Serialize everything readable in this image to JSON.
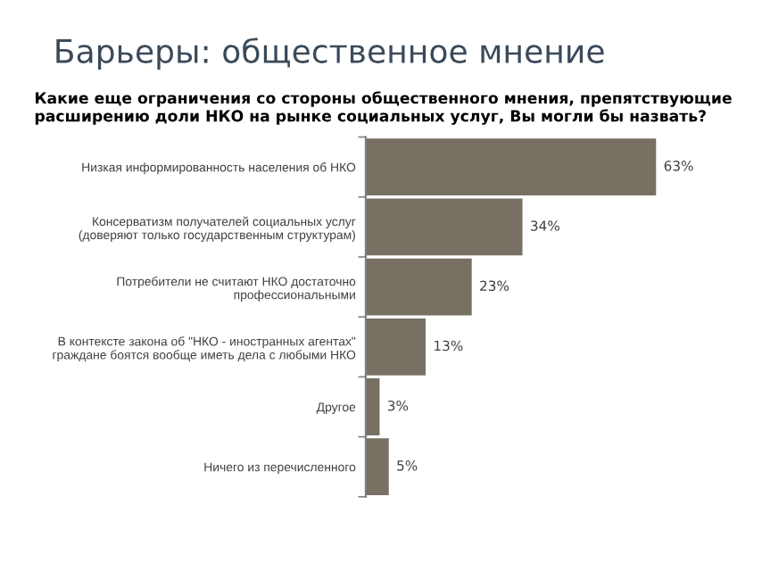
{
  "chart_data": {
    "type": "bar",
    "orientation": "horizontal",
    "title": "Барьеры: общественное мнение",
    "subtitle": "Какие еще ограничения со стороны общественного мнения, препятствующие расширению доли НКО на рынке социальных услуг, Вы могли бы назвать?",
    "categories": [
      "Низкая информированность населения об НКО",
      "Консерватизм получателей социальных услуг\n(доверяют только государственным структурам)",
      "Потребители не считают НКО достаточно\nпрофессиональными",
      "В контексте закона об \"НКО - иностранных агентах\"\nграждане боятся вообще иметь дела с любыми НКО",
      "Другое",
      "Ничего из перечисленного"
    ],
    "values": [
      63,
      34,
      23,
      13,
      3,
      5
    ],
    "value_labels": [
      "63%",
      "34%",
      "23%",
      "13%",
      "3%",
      "5%"
    ],
    "color": "#777063",
    "grid": false,
    "legend": false
  }
}
